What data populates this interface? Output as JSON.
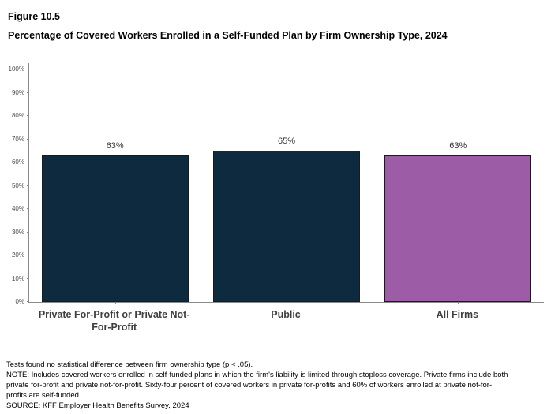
{
  "figure_label": "Figure 10.5",
  "title": "Percentage of Covered Workers Enrolled in a Self-Funded Plan by Firm Ownership Type, 2024",
  "chart_data": {
    "type": "bar",
    "title": "Percentage of Covered Workers Enrolled in a Self-Funded Plan by Firm Ownership Type, 2024",
    "categories": [
      "Private For-Profit or Private Not-For-Profit",
      "Public",
      "All Firms"
    ],
    "values": [
      63,
      65,
      63
    ],
    "value_labels": [
      "63%",
      "65%",
      "63%"
    ],
    "ylim": [
      0,
      100
    ],
    "ytick_step": 10,
    "ytick_labels": [
      "0%",
      "10%",
      "20%",
      "30%",
      "40%",
      "50%",
      "60%",
      "70%",
      "80%",
      "90%",
      "100%"
    ],
    "bar_colors": [
      "#0d2a3f",
      "#0d2a3f",
      "#9c5ca6"
    ],
    "bar_border_color": "#1a1a1a",
    "grid": false,
    "legend": false
  },
  "footnotes": [
    "Tests found no statistical difference between firm ownership type (p < .05).",
    "NOTE: Includes covered workers enrolled in self-funded plans in which the firm's liability is limited through stoploss coverage.  Private firms include both private for-profit and private not-for-profit. Sixty-four percent of covered workers in private for-profits and 60% of workers enrolled at private not-for-profits are self-funded",
    "SOURCE: KFF Employer Health Benefits Survey, 2024"
  ]
}
